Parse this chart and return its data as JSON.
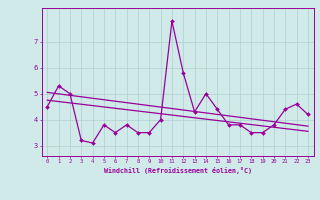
{
  "x": [
    0,
    1,
    2,
    3,
    4,
    5,
    6,
    7,
    8,
    9,
    10,
    11,
    12,
    13,
    14,
    15,
    16,
    17,
    18,
    19,
    20,
    21,
    22,
    23
  ],
  "series1": [
    4.5,
    5.3,
    5.0,
    3.2,
    3.1,
    3.8,
    3.5,
    3.8,
    3.5,
    3.5,
    4.0,
    7.8,
    5.8,
    4.3,
    5.0,
    4.4,
    3.8,
    3.8,
    3.5,
    3.5,
    3.8,
    4.4,
    4.6,
    4.2
  ],
  "trend1_x": [
    0,
    23
  ],
  "trend1_y": [
    5.05,
    3.75
  ],
  "trend2_x": [
    0,
    23
  ],
  "trend2_y": [
    4.75,
    3.55
  ],
  "line_color": "#990099",
  "background_color": "#d0eaea",
  "grid_color": "#b0d0d0",
  "xlabel": "Windchill (Refroidissement éolien,°C)",
  "xlim": [
    -0.5,
    23.5
  ],
  "ylim": [
    2.6,
    8.3
  ],
  "yticks": [
    3,
    4,
    5,
    6,
    7
  ],
  "xticks": [
    0,
    1,
    2,
    3,
    4,
    5,
    6,
    7,
    8,
    9,
    10,
    11,
    12,
    13,
    14,
    15,
    16,
    17,
    18,
    19,
    20,
    21,
    22,
    23
  ]
}
